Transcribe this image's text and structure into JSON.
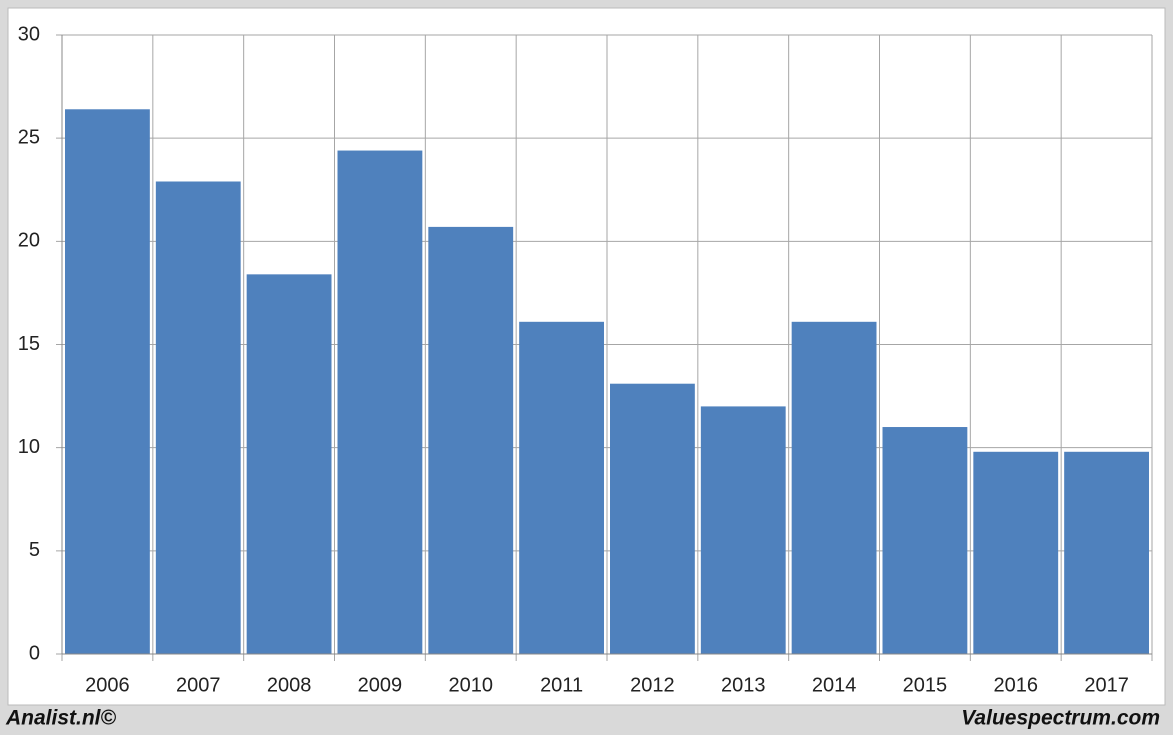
{
  "chart_data": {
    "type": "bar",
    "categories": [
      "2006",
      "2007",
      "2008",
      "2009",
      "2010",
      "2011",
      "2012",
      "2013",
      "2014",
      "2015",
      "2016",
      "2017"
    ],
    "values": [
      26.4,
      22.9,
      18.4,
      24.4,
      20.7,
      16.1,
      13.1,
      12.0,
      16.1,
      11.0,
      9.8,
      9.8
    ],
    "color": "#4f81bd",
    "ylim": [
      0,
      30
    ],
    "yticks": [
      0,
      5,
      10,
      15,
      20,
      25,
      30
    ],
    "grid": true
  },
  "footer": {
    "left": "Analist.nl©",
    "right": "Valuespectrum.com"
  }
}
